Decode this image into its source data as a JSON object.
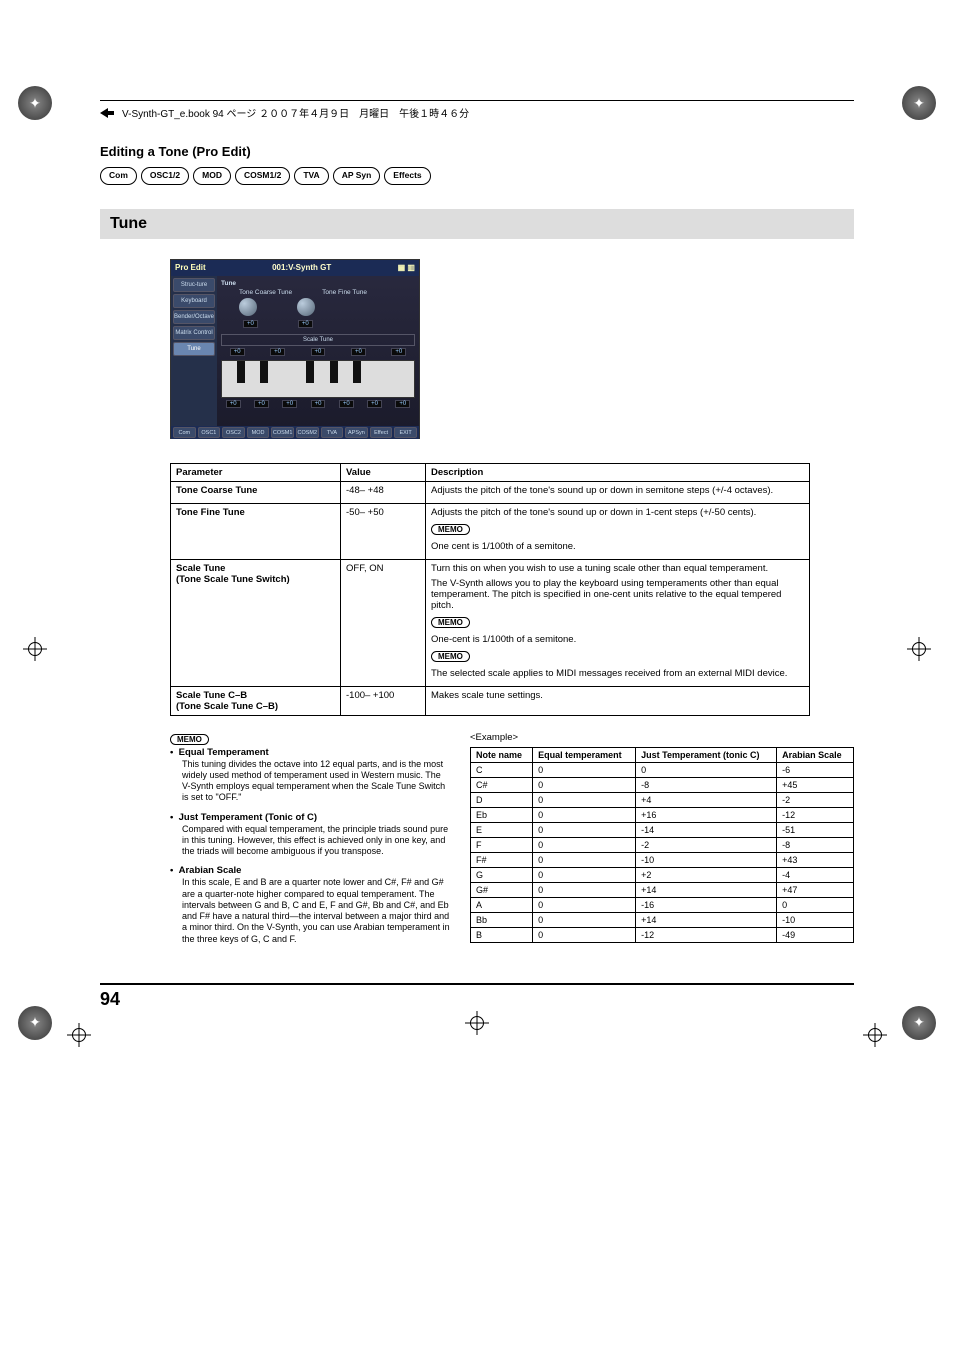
{
  "book_header": "V-Synth-GT_e.book  94 ページ  ２００７年４月９日　月曜日　午後１時４６分",
  "section_title": "Editing a Tone (Pro Edit)",
  "tabs": [
    "Com",
    "OSC1/2",
    "MOD",
    "COSM1/2",
    "TVA",
    "AP Syn",
    "Effects"
  ],
  "tune_heading": "Tune",
  "screenshot": {
    "top_left": "Pro Edit",
    "top_title": "001:V-Synth GT",
    "sidebar": [
      "Struc-ture",
      "Keyboard",
      "Bender/Octave",
      "Matrix Control",
      "Tune"
    ],
    "sidebar_selected": "Tune",
    "main_label": "Tune",
    "knob_labels": [
      "Tone Coarse Tune",
      "Tone Fine Tune"
    ],
    "knob_values": [
      "+0",
      "+0"
    ],
    "scale_box": "Scale Tune",
    "scale_values": [
      "+0",
      "+0",
      "+0",
      "+0",
      "+0"
    ],
    "scale_values2": [
      "+0",
      "+0",
      "+0",
      "+0",
      "+0",
      "+0",
      "+0"
    ],
    "bottom_tabs": [
      "Com",
      "OSC1",
      "OSC2",
      "MOD",
      "COSM1",
      "COSM2",
      "TVA",
      "APSyn",
      "Effect",
      "EXIT"
    ]
  },
  "param_table": {
    "headers": [
      "Parameter",
      "Value",
      "Description"
    ],
    "rows": [
      {
        "param": "Tone Coarse Tune",
        "value": "-48– +48",
        "desc": [
          {
            "type": "text",
            "text": "Adjusts the pitch of the tone's sound up or down in semitone steps (+/-4 octaves)."
          }
        ]
      },
      {
        "param": "Tone Fine Tune",
        "value": "-50– +50",
        "desc": [
          {
            "type": "text",
            "text": "Adjusts the pitch of the tone's sound up or down in 1-cent steps (+/-50 cents)."
          },
          {
            "type": "memo"
          },
          {
            "type": "text",
            "text": "One cent is 1/100th of a semitone."
          }
        ]
      },
      {
        "param": "Scale Tune\n(Tone Scale Tune Switch)",
        "value": "OFF, ON",
        "desc": [
          {
            "type": "text",
            "text": "Turn this on when you wish to use a tuning scale other than equal temperament."
          },
          {
            "type": "text",
            "text": "The V-Synth allows you to play the keyboard using temperaments other than equal temperament. The pitch is specified in one-cent units relative to the equal tempered pitch."
          },
          {
            "type": "memo"
          },
          {
            "type": "text",
            "text": "One-cent is 1/100th of a semitone."
          },
          {
            "type": "memo"
          },
          {
            "type": "text",
            "text": "The selected scale applies to MIDI messages received from an external MIDI device."
          }
        ]
      },
      {
        "param": "Scale Tune C–B\n(Tone Scale Tune C–B)",
        "value": "-100– +100",
        "desc": [
          {
            "type": "text",
            "text": "Makes scale tune settings."
          }
        ]
      }
    ]
  },
  "memo_label": "MEMO",
  "temperaments": [
    {
      "title": "Equal Temperament",
      "body": "This tuning divides the octave into 12 equal parts, and is the most widely used method of temperament used in Western music. The V-Synth employs equal temperament when the Scale Tune Switch is set to \"OFF.\""
    },
    {
      "title": "Just Temperament (Tonic of C)",
      "body": "Compared with equal temperament, the principle triads sound pure in this tuning. However, this effect is achieved only in one key, and the triads will become ambiguous if you transpose."
    },
    {
      "title": "Arabian Scale",
      "body": "In this scale, E and B are a quarter note lower and C#, F# and G# are a quarter-note higher compared to equal temperament. The intervals between G and B, C and E, F and G#, Bb and C#, and Eb and F# have a natural third—the interval between a major third and a minor third. On the V-Synth, you can use Arabian temperament in the three keys of G, C and F."
    }
  ],
  "example_heading": "<Example>",
  "example_table": {
    "headers": [
      "Note name",
      "Equal temperament",
      "Just Temperament (tonic C)",
      "Arabian Scale"
    ],
    "rows": [
      [
        "C",
        "0",
        "0",
        "-6"
      ],
      [
        "C#",
        "0",
        "-8",
        "+45"
      ],
      [
        "D",
        "0",
        "+4",
        "-2"
      ],
      [
        "Eb",
        "0",
        "+16",
        "-12"
      ],
      [
        "E",
        "0",
        "-14",
        "-51"
      ],
      [
        "F",
        "0",
        "-2",
        "-8"
      ],
      [
        "F#",
        "0",
        "-10",
        "+43"
      ],
      [
        "G",
        "0",
        "+2",
        "-4"
      ],
      [
        "G#",
        "0",
        "+14",
        "+47"
      ],
      [
        "A",
        "0",
        "-16",
        "0"
      ],
      [
        "Bb",
        "0",
        "+14",
        "-10"
      ],
      [
        "B",
        "0",
        "-12",
        "-49"
      ]
    ]
  },
  "page_number": "94"
}
